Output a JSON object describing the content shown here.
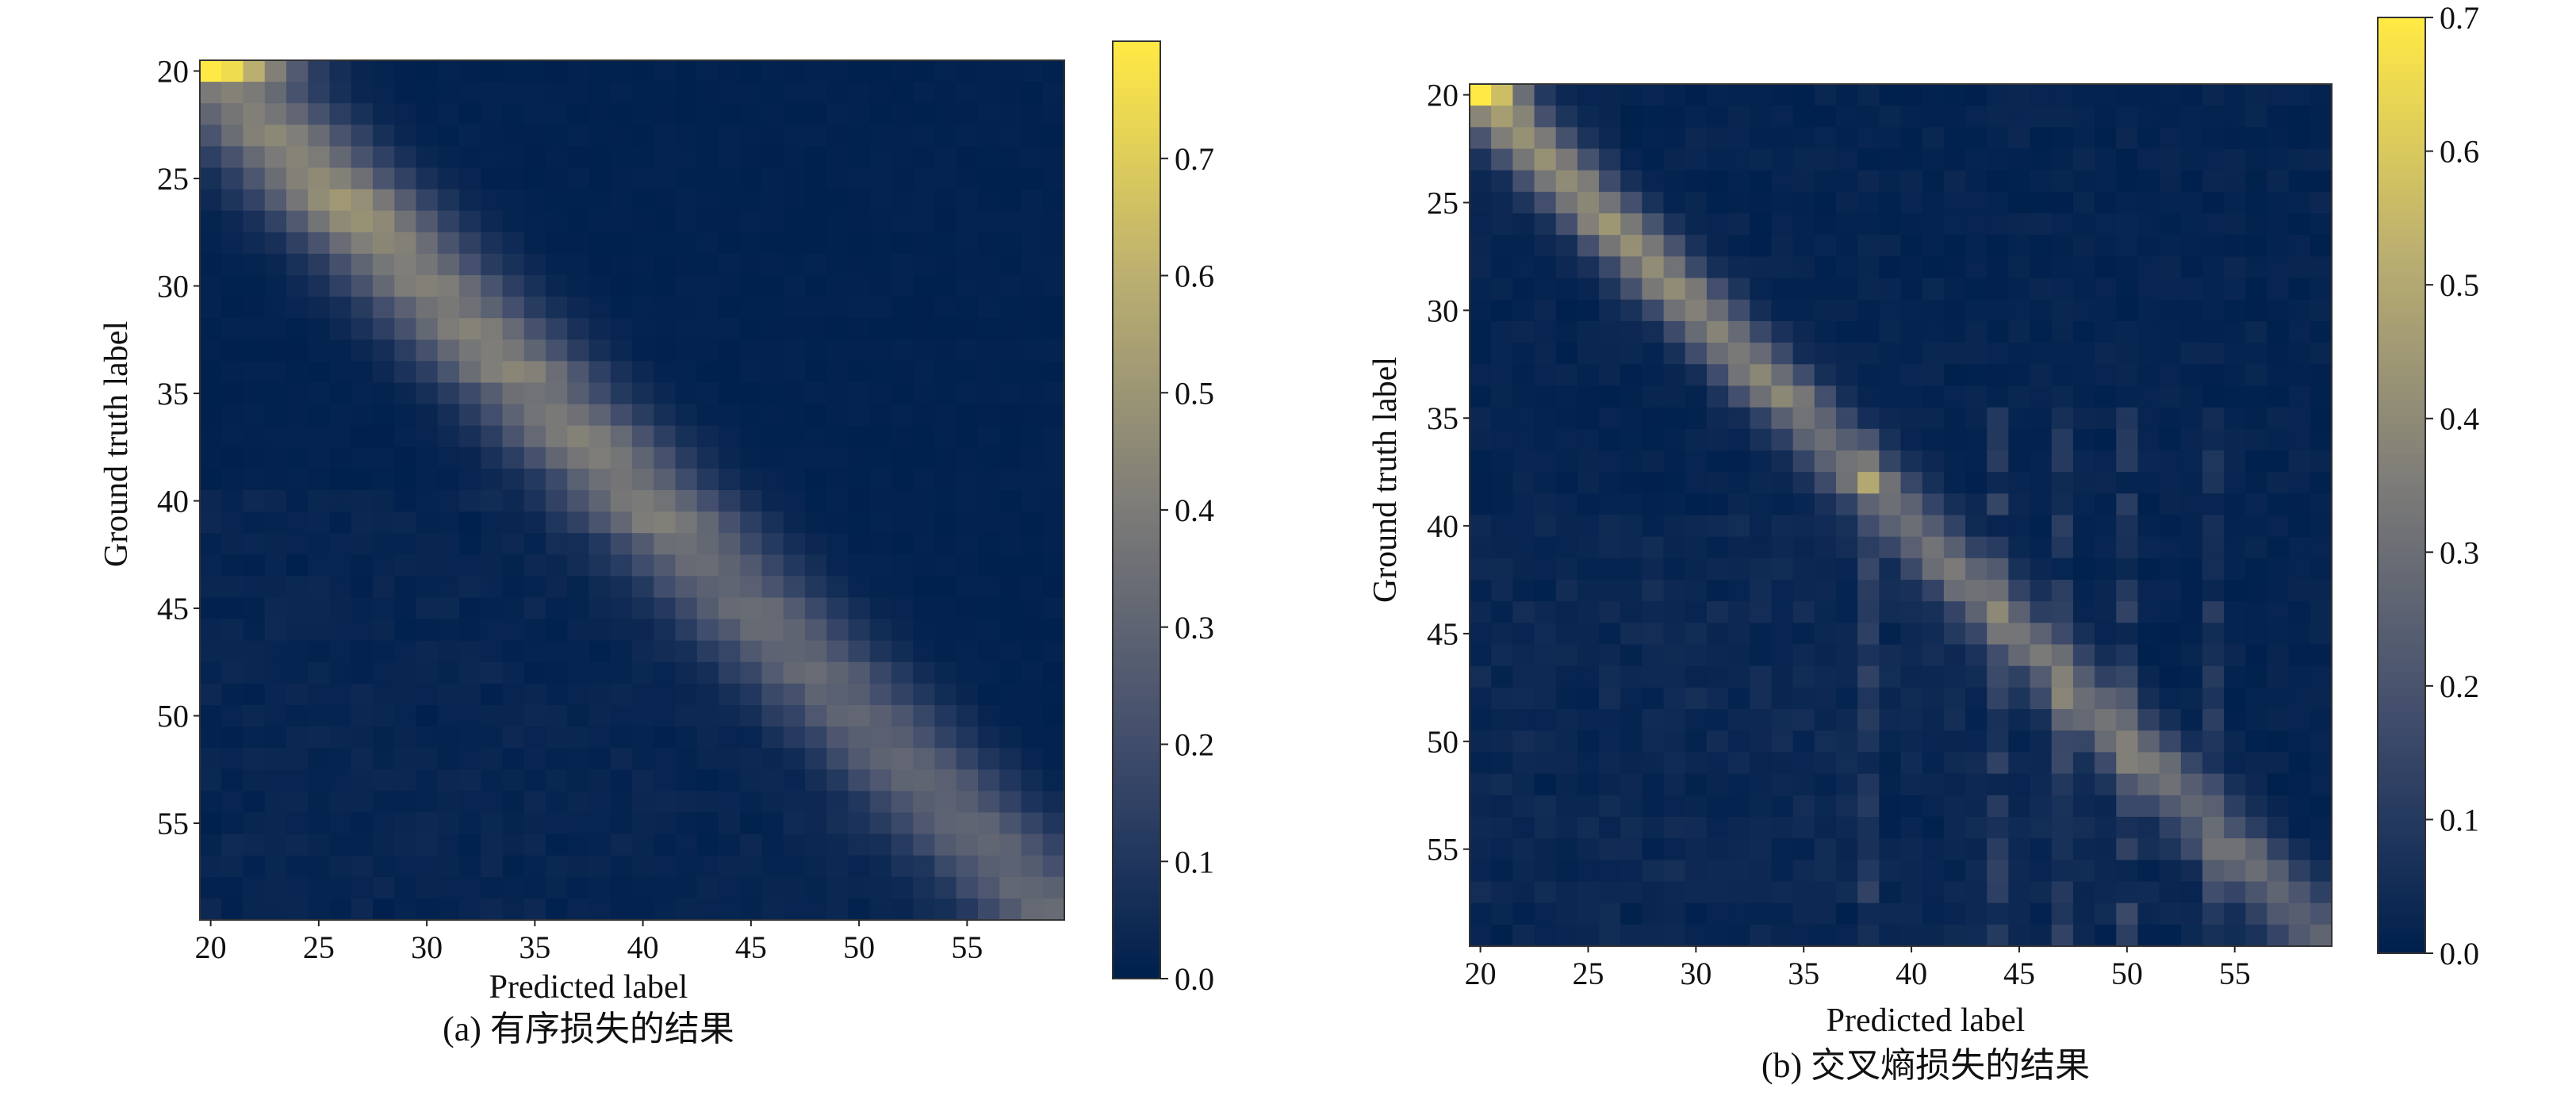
{
  "chart_data": [
    {
      "type": "heatmap",
      "caption": "(a) 有序损失的结果",
      "xlabel": "Predicted label",
      "ylabel": "Ground truth label",
      "x_range": [
        20,
        59
      ],
      "y_range": [
        20,
        59
      ],
      "x_ticks": [
        20,
        25,
        30,
        35,
        40,
        45,
        50,
        55
      ],
      "y_ticks": [
        20,
        25,
        30,
        35,
        40,
        45,
        50,
        55
      ],
      "colorbar_range": [
        0.0,
        0.8
      ],
      "colorbar_ticks": [
        "0.0",
        "0.1",
        "0.2",
        "0.3",
        "0.4",
        "0.5",
        "0.6",
        "0.7"
      ],
      "colormap": "cividis",
      "diagonal_values": [
        0.8,
        0.42,
        0.4,
        0.44,
        0.42,
        0.45,
        0.5,
        0.48,
        0.44,
        0.4,
        0.42,
        0.38,
        0.42,
        0.4,
        0.44,
        0.36,
        0.38,
        0.42,
        0.4,
        0.36,
        0.38,
        0.4,
        0.34,
        0.32,
        0.3,
        0.33,
        0.32,
        0.3,
        0.32,
        0.28,
        0.3,
        0.28,
        0.3,
        0.3,
        0.28,
        0.3,
        0.3,
        0.28,
        0.3,
        0.32
      ],
      "diagonal_spread": 2.6,
      "noise_level": 0.015
    },
    {
      "type": "heatmap",
      "caption": "(b) 交叉熵损失的结果",
      "xlabel": "Predicted label",
      "ylabel": "Ground truth label",
      "x_range": [
        20,
        59
      ],
      "y_range": [
        20,
        59
      ],
      "x_ticks": [
        20,
        25,
        30,
        35,
        40,
        45,
        50,
        55
      ],
      "y_ticks": [
        20,
        25,
        30,
        35,
        40,
        45,
        50,
        55
      ],
      "colorbar_range": [
        0.0,
        0.7
      ],
      "colorbar_ticks": [
        "0.0",
        "0.1",
        "0.2",
        "0.3",
        "0.4",
        "0.5",
        "0.6",
        "0.7"
      ],
      "colormap": "cividis",
      "diagonal_values": [
        0.7,
        0.45,
        0.42,
        0.4,
        0.4,
        0.38,
        0.42,
        0.4,
        0.38,
        0.4,
        0.36,
        0.35,
        0.34,
        0.36,
        0.38,
        0.3,
        0.28,
        0.3,
        0.36,
        0.3,
        0.28,
        0.3,
        0.32,
        0.3,
        0.28,
        0.3,
        0.32,
        0.26,
        0.28,
        0.3,
        0.3,
        0.32,
        0.28,
        0.26,
        0.24,
        0.3,
        0.28,
        0.24,
        0.22,
        0.26
      ],
      "diagonal_spread": 1.5,
      "noise_level": 0.03,
      "column_streaks": [
        38,
        44,
        47,
        50,
        54
      ]
    }
  ]
}
